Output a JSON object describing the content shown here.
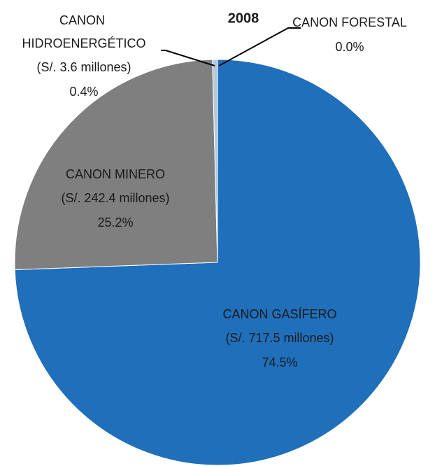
{
  "chart_data": {
    "type": "pie",
    "title": "2008",
    "categories": [
      "CANON GASÍFERO",
      "CANON MINERO",
      "CANON HIDROENERGÉTICO",
      "CANON FORESTAL"
    ],
    "amount_labels": [
      "(S/. 717.5 millones)",
      "(S/. 242.4 millones)",
      "(S/. 3.6 millones)",
      null
    ],
    "values": [
      74.5,
      25.2,
      0.4,
      0.0
    ],
    "value_labels": [
      "74.5%",
      "25.2%",
      "0.4%",
      "0.0%"
    ],
    "colors": [
      "#1f6fba",
      "#7f7f7f",
      "#b7c9da",
      "#5b9bd5"
    ]
  }
}
